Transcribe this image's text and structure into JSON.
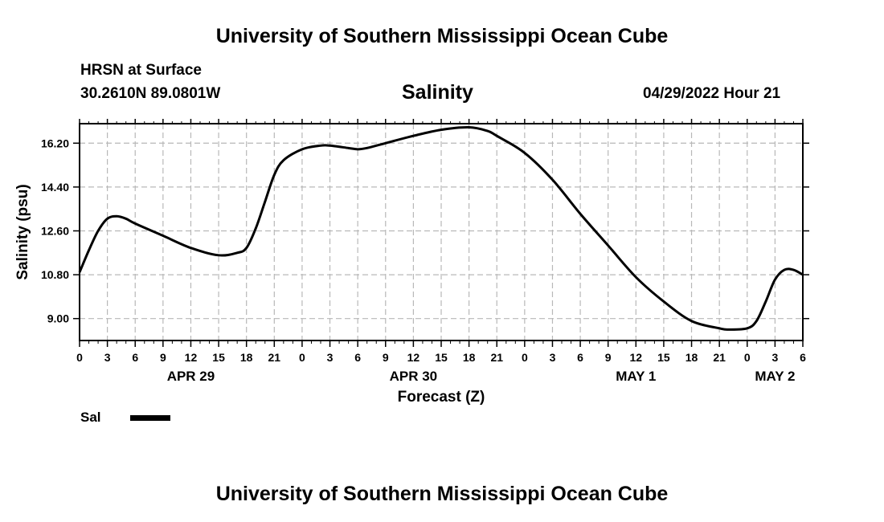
{
  "header": {
    "title_top": "University of Southern Mississippi Ocean Cube",
    "title_bottom": "University of Southern Mississippi Ocean Cube",
    "station": "HRSN at Surface",
    "coords": "30.2610N  89.0801W",
    "chart_title": "Salinity",
    "datetime": "04/29/2022 Hour 21"
  },
  "legend": {
    "label": "Sal"
  },
  "chart_data": {
    "type": "line",
    "title": "Salinity",
    "xlabel": "Forecast (Z)",
    "ylabel": "Salinity (psu)",
    "xlim": [
      0,
      78
    ],
    "ylim": [
      8.1,
      17.0
    ],
    "yticks": [
      9.0,
      10.8,
      12.6,
      14.4,
      16.2
    ],
    "ytick_labels": [
      "9.00",
      "10.80",
      "12.60",
      "14.40",
      "16.20"
    ],
    "xtick_labels": [
      "0",
      "3",
      "6",
      "9",
      "12",
      "15",
      "18",
      "21",
      "0",
      "3",
      "6",
      "9",
      "12",
      "15",
      "18",
      "21",
      "0",
      "3",
      "6",
      "9",
      "12",
      "15",
      "18",
      "21",
      "0",
      "3",
      "6"
    ],
    "day_labels": [
      {
        "hour": 12,
        "label": "APR 29"
      },
      {
        "hour": 36,
        "label": "APR 30"
      },
      {
        "hour": 60,
        "label": "MAY 1"
      },
      {
        "hour": 75,
        "label": "MAY 2"
      }
    ],
    "grid": true,
    "series": [
      {
        "name": "Sal",
        "color": "#000000",
        "x": [
          0,
          1,
          2,
          3,
          4,
          5,
          6,
          9,
          12,
          15,
          17,
          18,
          19,
          20,
          21,
          22,
          24,
          26,
          27,
          29,
          30,
          31,
          33,
          36,
          39,
          42,
          44,
          45,
          48,
          51,
          54,
          57,
          60,
          63,
          66,
          69,
          70,
          72,
          73,
          74,
          75,
          76,
          77,
          78
        ],
        "values": [
          10.9,
          11.8,
          12.6,
          13.1,
          13.2,
          13.1,
          12.9,
          12.4,
          11.9,
          11.6,
          11.7,
          11.9,
          12.7,
          13.8,
          14.9,
          15.5,
          15.95,
          16.1,
          16.1,
          16.0,
          15.95,
          16.0,
          16.2,
          16.5,
          16.75,
          16.85,
          16.7,
          16.5,
          15.8,
          14.7,
          13.3,
          12.0,
          10.7,
          9.7,
          8.9,
          8.6,
          8.55,
          8.6,
          8.9,
          9.7,
          10.6,
          11.0,
          11.0,
          10.8
        ]
      }
    ]
  }
}
